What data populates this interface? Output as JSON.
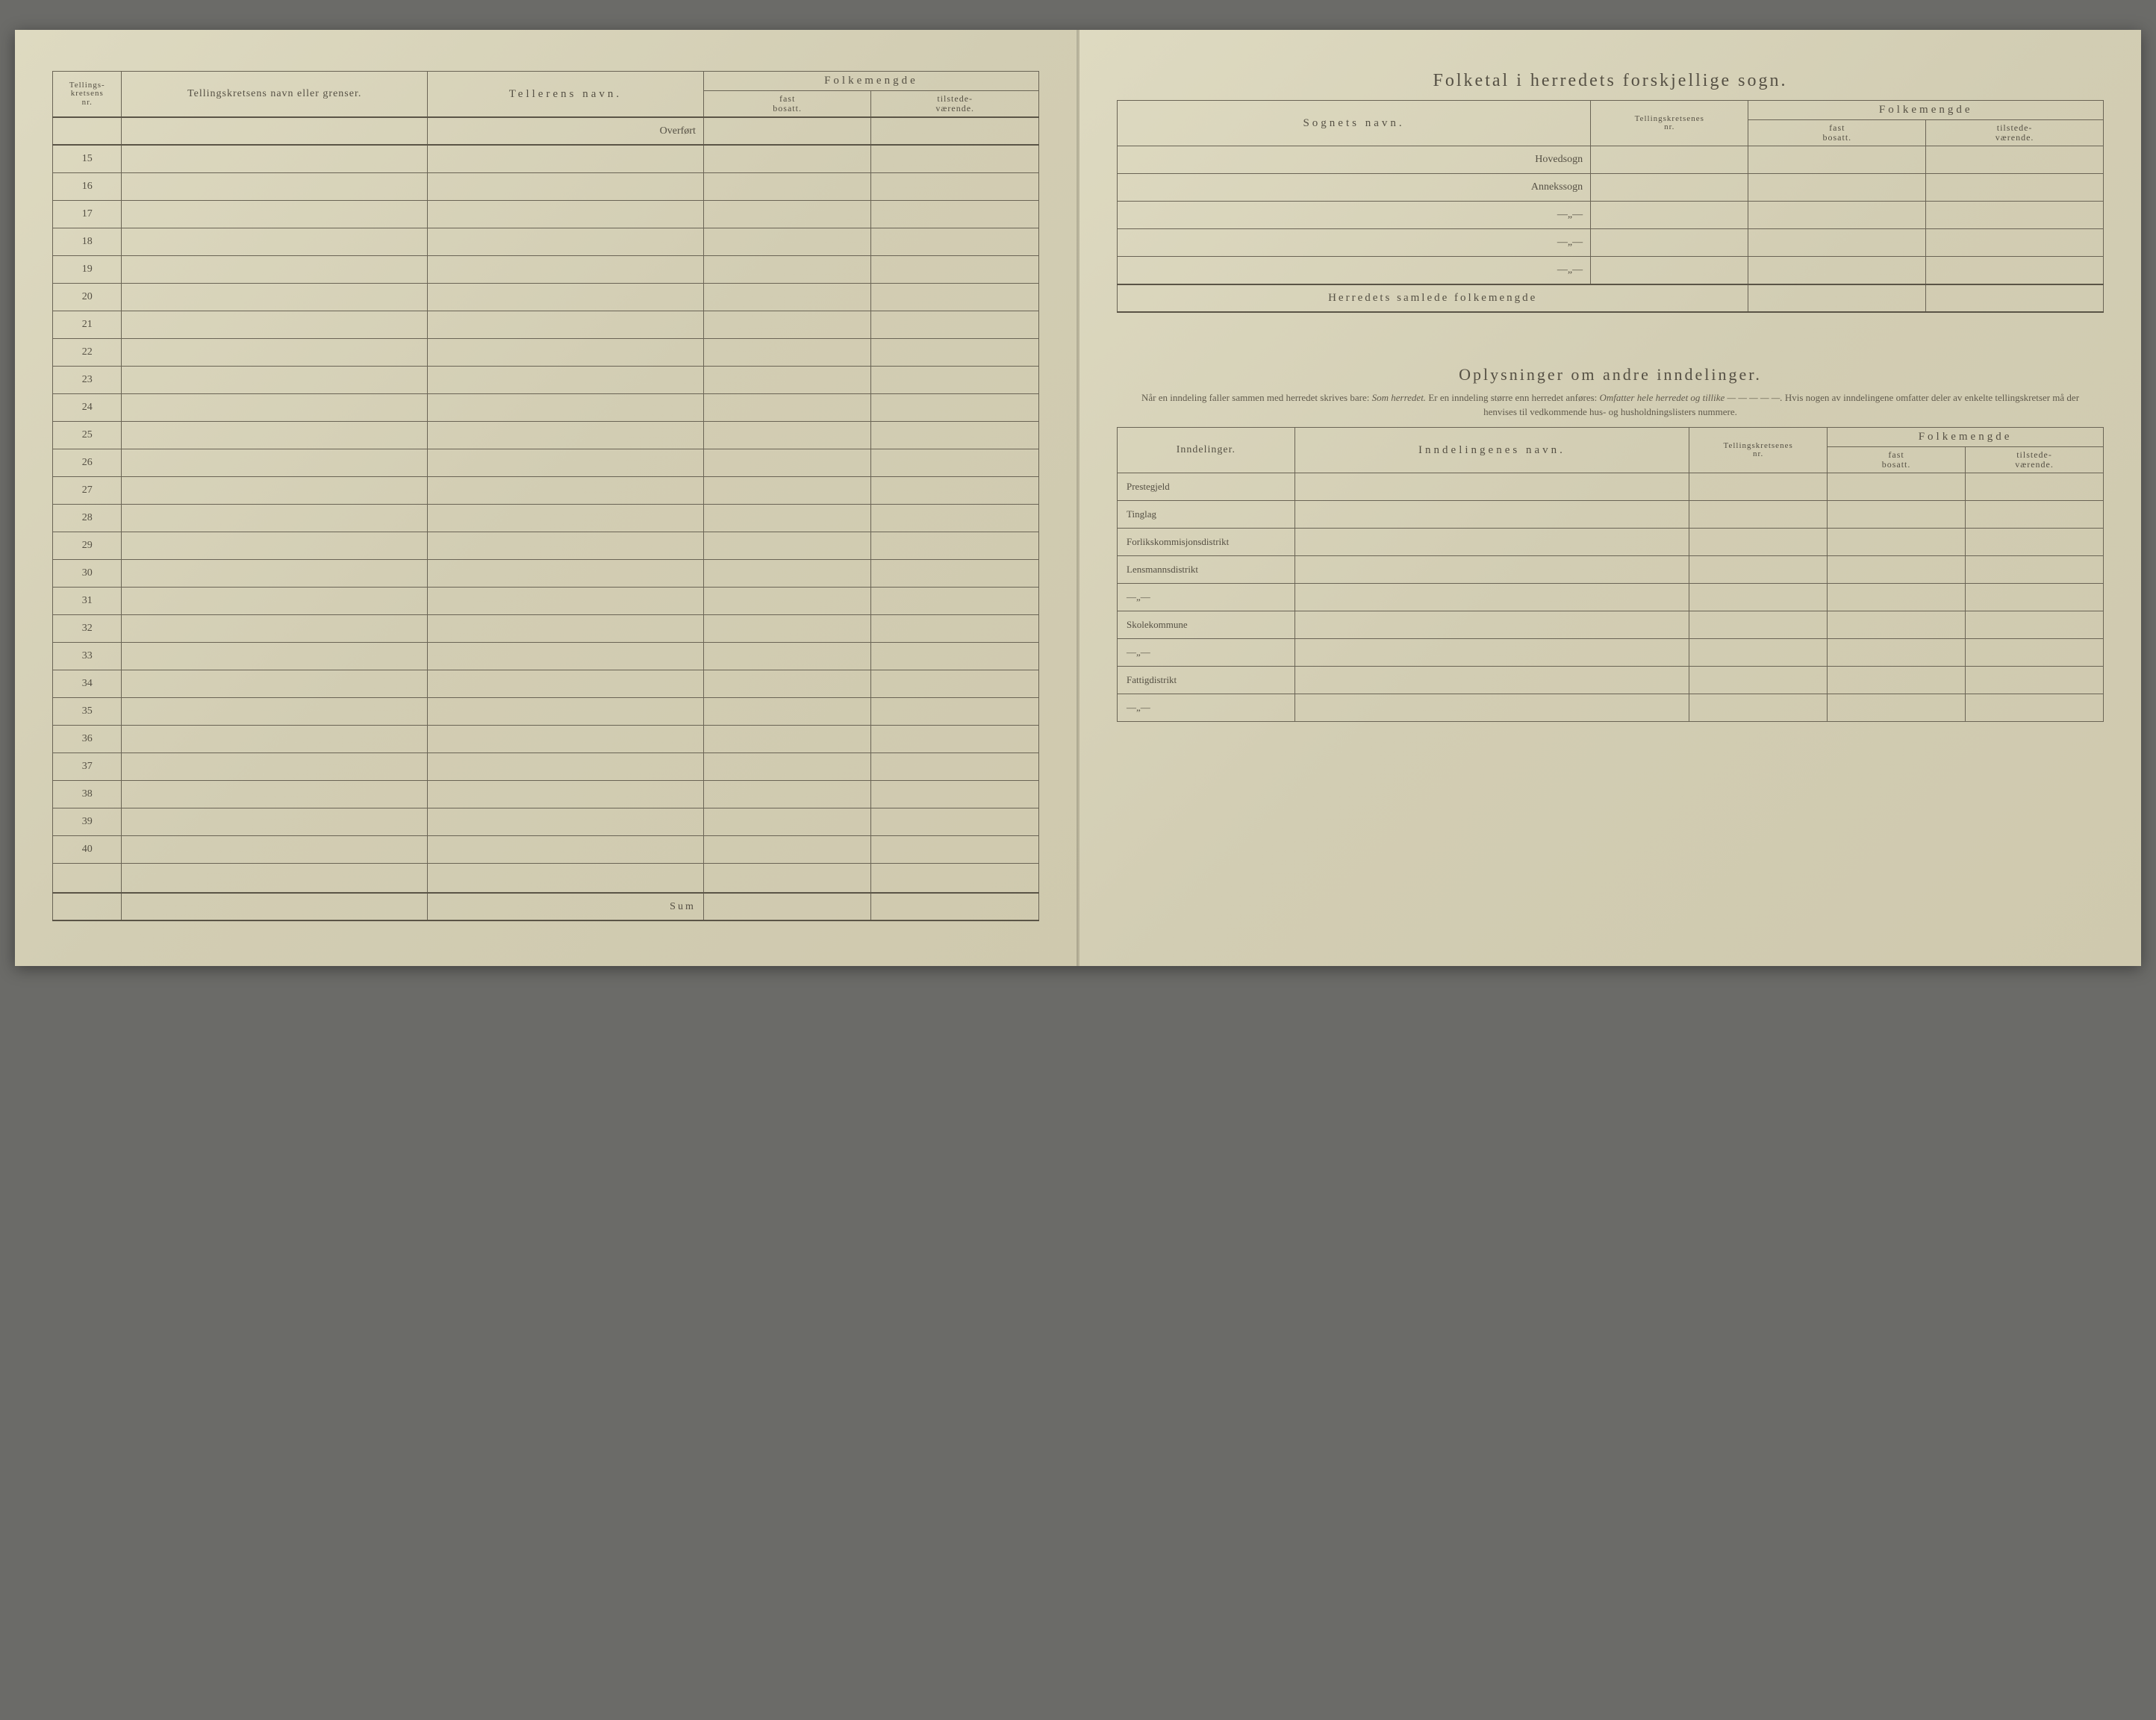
{
  "colors": {
    "paper": "#d6d2b9",
    "paper_gradient_start": "#dedac1",
    "paper_gradient_end": "#cfc9ae",
    "rule": "#6a6455",
    "text": "#555044",
    "outer_bg": "#6b6b68"
  },
  "typography": {
    "title_fontsize": 24,
    "title_letterspacing": 3,
    "header_fontsize": 14,
    "sub_fontsize": 12,
    "body_fontsize": 14,
    "instruction_fontsize": 13,
    "font_family": "Georgia serif"
  },
  "left_page": {
    "table": {
      "columns": [
        {
          "key": "nr",
          "label_line1": "Tellings-",
          "label_line2": "kretsens",
          "label_line3": "nr.",
          "width_pct": 7
        },
        {
          "key": "krets",
          "label": "Tellingskretsens navn eller grenser.",
          "width_pct": 31
        },
        {
          "key": "teller",
          "label": "Tellerens navn.",
          "width_pct": 28
        },
        {
          "key": "fm",
          "label": "Folkemengde",
          "width_pct": 34,
          "sub": [
            {
              "key": "fast",
              "label_line1": "fast",
              "label_line2": "bosatt."
            },
            {
              "key": "tilst",
              "label_line1": "tilstede-",
              "label_line2": "værende."
            }
          ]
        }
      ],
      "overfort_label": "Overført",
      "rows": [
        {
          "nr": "15",
          "krets": "",
          "teller": "",
          "fast": "",
          "tilst": ""
        },
        {
          "nr": "16",
          "krets": "",
          "teller": "",
          "fast": "",
          "tilst": ""
        },
        {
          "nr": "17",
          "krets": "",
          "teller": "",
          "fast": "",
          "tilst": ""
        },
        {
          "nr": "18",
          "krets": "",
          "teller": "",
          "fast": "",
          "tilst": ""
        },
        {
          "nr": "19",
          "krets": "",
          "teller": "",
          "fast": "",
          "tilst": ""
        },
        {
          "nr": "20",
          "krets": "",
          "teller": "",
          "fast": "",
          "tilst": ""
        },
        {
          "nr": "21",
          "krets": "",
          "teller": "",
          "fast": "",
          "tilst": ""
        },
        {
          "nr": "22",
          "krets": "",
          "teller": "",
          "fast": "",
          "tilst": ""
        },
        {
          "nr": "23",
          "krets": "",
          "teller": "",
          "fast": "",
          "tilst": ""
        },
        {
          "nr": "24",
          "krets": "",
          "teller": "",
          "fast": "",
          "tilst": ""
        },
        {
          "nr": "25",
          "krets": "",
          "teller": "",
          "fast": "",
          "tilst": ""
        },
        {
          "nr": "26",
          "krets": "",
          "teller": "",
          "fast": "",
          "tilst": ""
        },
        {
          "nr": "27",
          "krets": "",
          "teller": "",
          "fast": "",
          "tilst": ""
        },
        {
          "nr": "28",
          "krets": "",
          "teller": "",
          "fast": "",
          "tilst": ""
        },
        {
          "nr": "29",
          "krets": "",
          "teller": "",
          "fast": "",
          "tilst": ""
        },
        {
          "nr": "30",
          "krets": "",
          "teller": "",
          "fast": "",
          "tilst": ""
        },
        {
          "nr": "31",
          "krets": "",
          "teller": "",
          "fast": "",
          "tilst": ""
        },
        {
          "nr": "32",
          "krets": "",
          "teller": "",
          "fast": "",
          "tilst": ""
        },
        {
          "nr": "33",
          "krets": "",
          "teller": "",
          "fast": "",
          "tilst": ""
        },
        {
          "nr": "34",
          "krets": "",
          "teller": "",
          "fast": "",
          "tilst": ""
        },
        {
          "nr": "35",
          "krets": "",
          "teller": "",
          "fast": "",
          "tilst": ""
        },
        {
          "nr": "36",
          "krets": "",
          "teller": "",
          "fast": "",
          "tilst": ""
        },
        {
          "nr": "37",
          "krets": "",
          "teller": "",
          "fast": "",
          "tilst": ""
        },
        {
          "nr": "38",
          "krets": "",
          "teller": "",
          "fast": "",
          "tilst": ""
        },
        {
          "nr": "39",
          "krets": "",
          "teller": "",
          "fast": "",
          "tilst": ""
        },
        {
          "nr": "40",
          "krets": "",
          "teller": "",
          "fast": "",
          "tilst": ""
        }
      ],
      "sum_label": "Sum"
    }
  },
  "right_page": {
    "title": "Folketal i herredets forskjellige sogn.",
    "sogn_table": {
      "columns": [
        {
          "key": "sogn",
          "label": "Sognets navn.",
          "width_pct": 48
        },
        {
          "key": "kretser",
          "label_line1": "Tellingskretsenes",
          "label_line2": "nr.",
          "width_pct": 16
        },
        {
          "key": "fm",
          "label": "Folkemengde",
          "width_pct": 36,
          "sub": [
            {
              "key": "fast",
              "label_line1": "fast",
              "label_line2": "bosatt."
            },
            {
              "key": "tilst",
              "label_line1": "tilstede-",
              "label_line2": "værende."
            }
          ]
        }
      ],
      "rows": [
        {
          "sogn": "Hovedsogn",
          "kretser": "",
          "fast": "",
          "tilst": ""
        },
        {
          "sogn": "Annekssogn",
          "kretser": "",
          "fast": "",
          "tilst": ""
        },
        {
          "sogn": "—„—",
          "kretser": "",
          "fast": "",
          "tilst": ""
        },
        {
          "sogn": "—„—",
          "kretser": "",
          "fast": "",
          "tilst": ""
        },
        {
          "sogn": "—„—",
          "kretser": "",
          "fast": "",
          "tilst": ""
        }
      ],
      "total_label": "Herredets samlede folkemengde",
      "total_fast": "",
      "total_tilst": ""
    },
    "section2": {
      "title": "Oplysninger om andre inndelinger.",
      "instructions_parts": [
        {
          "t": "Når en inndeling faller sammen med herredet skrives bare: "
        },
        {
          "t": "Som herredet.",
          "em": true
        },
        {
          "t": "  Er en inndeling større enn herredet anføres: "
        },
        {
          "t": "Omfatter hele herredet og tillike — — — — —.",
          "em": true
        },
        {
          "t": "  Hvis nogen av inndelingene omfatter deler av enkelte tellingskretser må der henvises til vedkommende hus- og husholdningslisters nummere."
        }
      ],
      "table": {
        "columns": [
          {
            "key": "ind",
            "label": "Inndelinger.",
            "width_pct": 18
          },
          {
            "key": "navn",
            "label": "Inndelingenes navn.",
            "width_pct": 40
          },
          {
            "key": "kretser",
            "label_line1": "Tellingskretsenes",
            "label_line2": "nr.",
            "width_pct": 14
          },
          {
            "key": "fm",
            "label": "Folkemengde",
            "width_pct": 28,
            "sub": [
              {
                "key": "fast",
                "label_line1": "fast",
                "label_line2": "bosatt."
              },
              {
                "key": "tilst",
                "label_line1": "tilstede-",
                "label_line2": "værende."
              }
            ]
          }
        ],
        "rows": [
          {
            "ind": "Prestegjeld",
            "navn": "",
            "kretser": "",
            "fast": "",
            "tilst": ""
          },
          {
            "ind": "Tinglag",
            "navn": "",
            "kretser": "",
            "fast": "",
            "tilst": ""
          },
          {
            "ind": "Forlikskommisjonsdistrikt",
            "navn": "",
            "kretser": "",
            "fast": "",
            "tilst": ""
          },
          {
            "ind": "Lensmannsdistrikt",
            "navn": "",
            "kretser": "",
            "fast": "",
            "tilst": ""
          },
          {
            "ind": "—„—",
            "navn": "",
            "kretser": "",
            "fast": "",
            "tilst": ""
          },
          {
            "ind": "Skolekommune",
            "navn": "",
            "kretser": "",
            "fast": "",
            "tilst": ""
          },
          {
            "ind": "—„—",
            "navn": "",
            "kretser": "",
            "fast": "",
            "tilst": ""
          },
          {
            "ind": "Fattigdistrikt",
            "navn": "",
            "kretser": "",
            "fast": "",
            "tilst": ""
          },
          {
            "ind": "—„—",
            "navn": "",
            "kretser": "",
            "fast": "",
            "tilst": ""
          }
        ]
      }
    }
  }
}
